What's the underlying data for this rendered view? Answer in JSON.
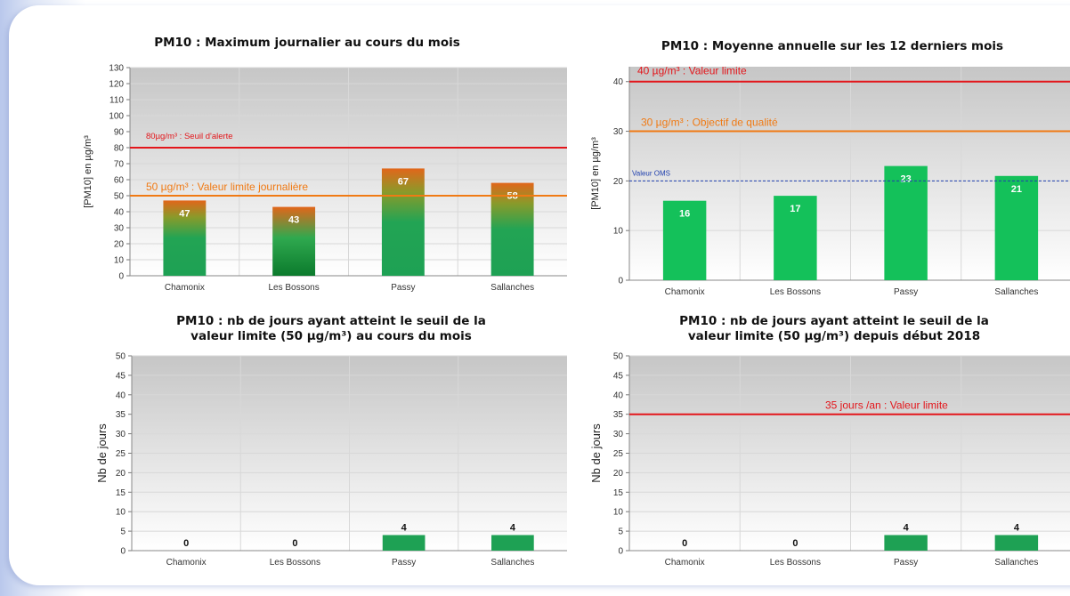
{
  "colors": {
    "red_line": "#e3161b",
    "orange_line": "#f07a14",
    "blue_line": "#1f3fae",
    "bar_green": "#1ea154",
    "bar_green_light": "#14c15a",
    "bar_orange": "#e2661a"
  },
  "chart_data": [
    {
      "type": "bar",
      "title": "PM10 : Maximum journalier au cours du mois",
      "ylabel": "[PM10] en µg/m³",
      "categories": [
        "Chamonix",
        "Les Bossons",
        "Passy",
        "Sallanches"
      ],
      "values": [
        47,
        43,
        67,
        58
      ],
      "value_labels": [
        "47",
        "43",
        "67",
        "58"
      ],
      "ylim": [
        0,
        130
      ],
      "yticks": [
        0,
        10,
        20,
        30,
        40,
        50,
        60,
        70,
        80,
        90,
        100,
        110,
        120,
        130
      ],
      "ytick_labels": [
        "0",
        "10",
        "20",
        "30",
        "40",
        "50",
        "60",
        "70",
        "80",
        "90",
        "100",
        "110",
        "120",
        "130"
      ],
      "thresholds": [
        {
          "value": 80,
          "label": "80µg/m³ : Seuil d'alerte",
          "color": "#e3161b",
          "style": "solid"
        },
        {
          "value": 50,
          "label": "50 µg/m³ : Valeur limite journalière",
          "color": "#f07a14",
          "style": "solid"
        }
      ],
      "bar_fill": "green-to-orange gradient"
    },
    {
      "type": "bar",
      "title": "PM10 : Moyenne annuelle sur les 12 derniers mois",
      "ylabel": "[PM10] en µg/m³",
      "categories": [
        "Chamonix",
        "Les Bossons",
        "Passy",
        "Sallanches"
      ],
      "values": [
        16,
        17,
        23,
        21
      ],
      "value_labels": [
        "16",
        "17",
        "23",
        "21"
      ],
      "ylim": [
        0,
        43
      ],
      "yticks": [
        0,
        10,
        20,
        30,
        40
      ],
      "ytick_labels": [
        "0",
        "10",
        "20",
        "30",
        "40"
      ],
      "thresholds": [
        {
          "value": 40,
          "label": "40 µg/m³ : Valeur limite",
          "color": "#e3161b",
          "style": "solid"
        },
        {
          "value": 30,
          "label": "30 µg/m³ : Objectif de qualité",
          "color": "#f07a14",
          "style": "solid"
        },
        {
          "value": 20,
          "label": "Valeur OMS",
          "color": "#1f3fae",
          "style": "dashed"
        }
      ],
      "bar_fill": "green"
    },
    {
      "type": "bar",
      "title": "PM10 : nb de jours ayant atteint le seuil de la valeur limite (50 µg/m³) au cours du mois",
      "title_lines": [
        "PM10 : nb de jours ayant atteint le seuil de la",
        "valeur limite (50 µg/m³) au cours du mois"
      ],
      "ylabel": "Nb de jours",
      "categories": [
        "Chamonix",
        "Les Bossons",
        "Passy",
        "Sallanches"
      ],
      "values": [
        0,
        0,
        4,
        4
      ],
      "value_labels": [
        "0",
        "0",
        "4",
        "4"
      ],
      "ylim": [
        0,
        50
      ],
      "yticks": [
        0,
        5,
        10,
        15,
        20,
        25,
        30,
        35,
        40,
        45,
        50
      ],
      "ytick_labels": [
        "0",
        "5",
        "10",
        "15",
        "20",
        "25",
        "30",
        "35",
        "40",
        "45",
        "50"
      ],
      "thresholds": [],
      "bar_fill": "green"
    },
    {
      "type": "bar",
      "title": "PM10 : nb de jours ayant atteint le seuil de la valeur limite (50 µg/m³) depuis début 2018",
      "title_lines": [
        "PM10 : nb de jours ayant atteint le seuil de la",
        "valeur limite (50 µg/m³) depuis début 2018"
      ],
      "ylabel": "Nb de jours",
      "categories": [
        "Chamonix",
        "Les Bossons",
        "Passy",
        "Sallanches"
      ],
      "values": [
        0,
        0,
        4,
        4
      ],
      "value_labels": [
        "0",
        "0",
        "4",
        "4"
      ],
      "ylim": [
        0,
        50
      ],
      "yticks": [
        0,
        5,
        10,
        15,
        20,
        25,
        30,
        35,
        40,
        45,
        50
      ],
      "ytick_labels": [
        "0",
        "5",
        "10",
        "15",
        "20",
        "25",
        "30",
        "35",
        "40",
        "45",
        "50"
      ],
      "thresholds": [
        {
          "value": 35,
          "label": "35 jours /an  : Valeur limite",
          "color": "#e3161b",
          "style": "solid"
        }
      ],
      "bar_fill": "green"
    }
  ]
}
